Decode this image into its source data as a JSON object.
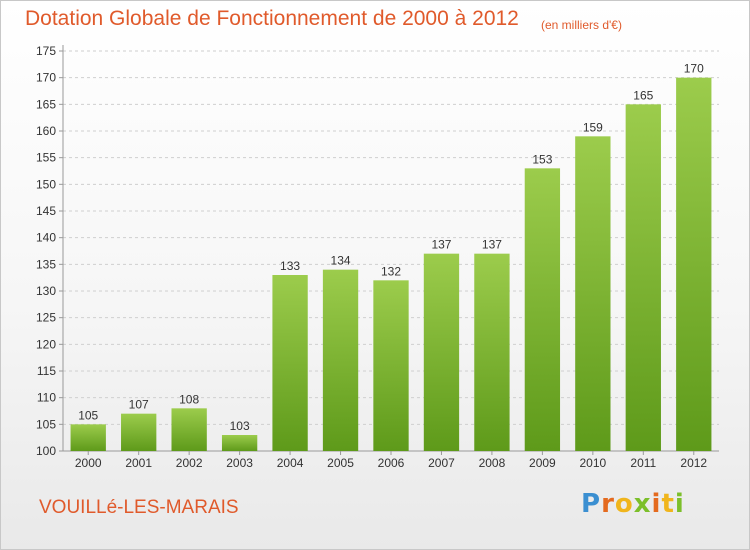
{
  "title": "Dotation Globale de Fonctionnement de 2000 à 2012",
  "unit": "(en milliers d'€)",
  "commune": "VOUILLé-LES-MARAIS",
  "brand": "Proxiti",
  "colors": {
    "title": "#e05a2b",
    "bar_top": "#9ccc4c",
    "bar_bottom": "#5e9a1a",
    "grid": "#cfcfcf"
  },
  "chart_data": {
    "type": "bar",
    "categories": [
      "2000",
      "2001",
      "2002",
      "2003",
      "2004",
      "2005",
      "2006",
      "2007",
      "2008",
      "2009",
      "2010",
      "2011",
      "2012"
    ],
    "values": [
      105,
      107,
      108,
      103,
      133,
      134,
      132,
      137,
      137,
      153,
      159,
      165,
      170
    ],
    "ylim": [
      100,
      175
    ],
    "yticks": [
      100,
      105,
      110,
      115,
      120,
      125,
      130,
      135,
      140,
      145,
      150,
      155,
      160,
      165,
      170,
      175
    ],
    "grid": true,
    "data_labels": true
  }
}
